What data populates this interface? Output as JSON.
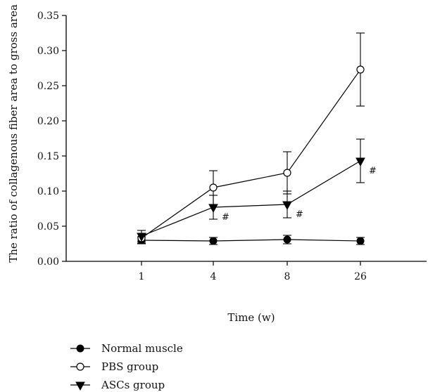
{
  "chart_data": {
    "type": "line",
    "xlabel": "Time (w)",
    "ylabel": "The ratio of collagenous fiber area to gross area",
    "categories": [
      "1",
      "4",
      "8",
      "26"
    ],
    "ylim": [
      0,
      0.35
    ],
    "yticks": [
      "0.00",
      "0.05",
      "0.10",
      "0.15",
      "0.20",
      "0.25",
      "0.30",
      "0.35"
    ],
    "grid": false,
    "legend_position": "bottom-left",
    "series": [
      {
        "name": "Normal muscle",
        "marker": "filled-circle",
        "values": [
          0.03,
          0.029,
          0.031,
          0.029
        ],
        "err": [
          0.005,
          0.005,
          0.006,
          0.005
        ],
        "significance": [
          "",
          "",
          "",
          ""
        ]
      },
      {
        "name": "PBS group",
        "marker": "open-circle",
        "values": [
          0.033,
          0.105,
          0.126,
          0.273
        ],
        "err": [
          0.007,
          0.024,
          0.03,
          0.052
        ],
        "significance": [
          "",
          "",
          "",
          ""
        ]
      },
      {
        "name": "ASCs group",
        "marker": "filled-triangle-down",
        "values": [
          0.036,
          0.077,
          0.081,
          0.143
        ],
        "err": [
          0.008,
          0.017,
          0.019,
          0.031
        ],
        "significance": [
          "",
          "#",
          "#",
          "#"
        ]
      }
    ]
  }
}
